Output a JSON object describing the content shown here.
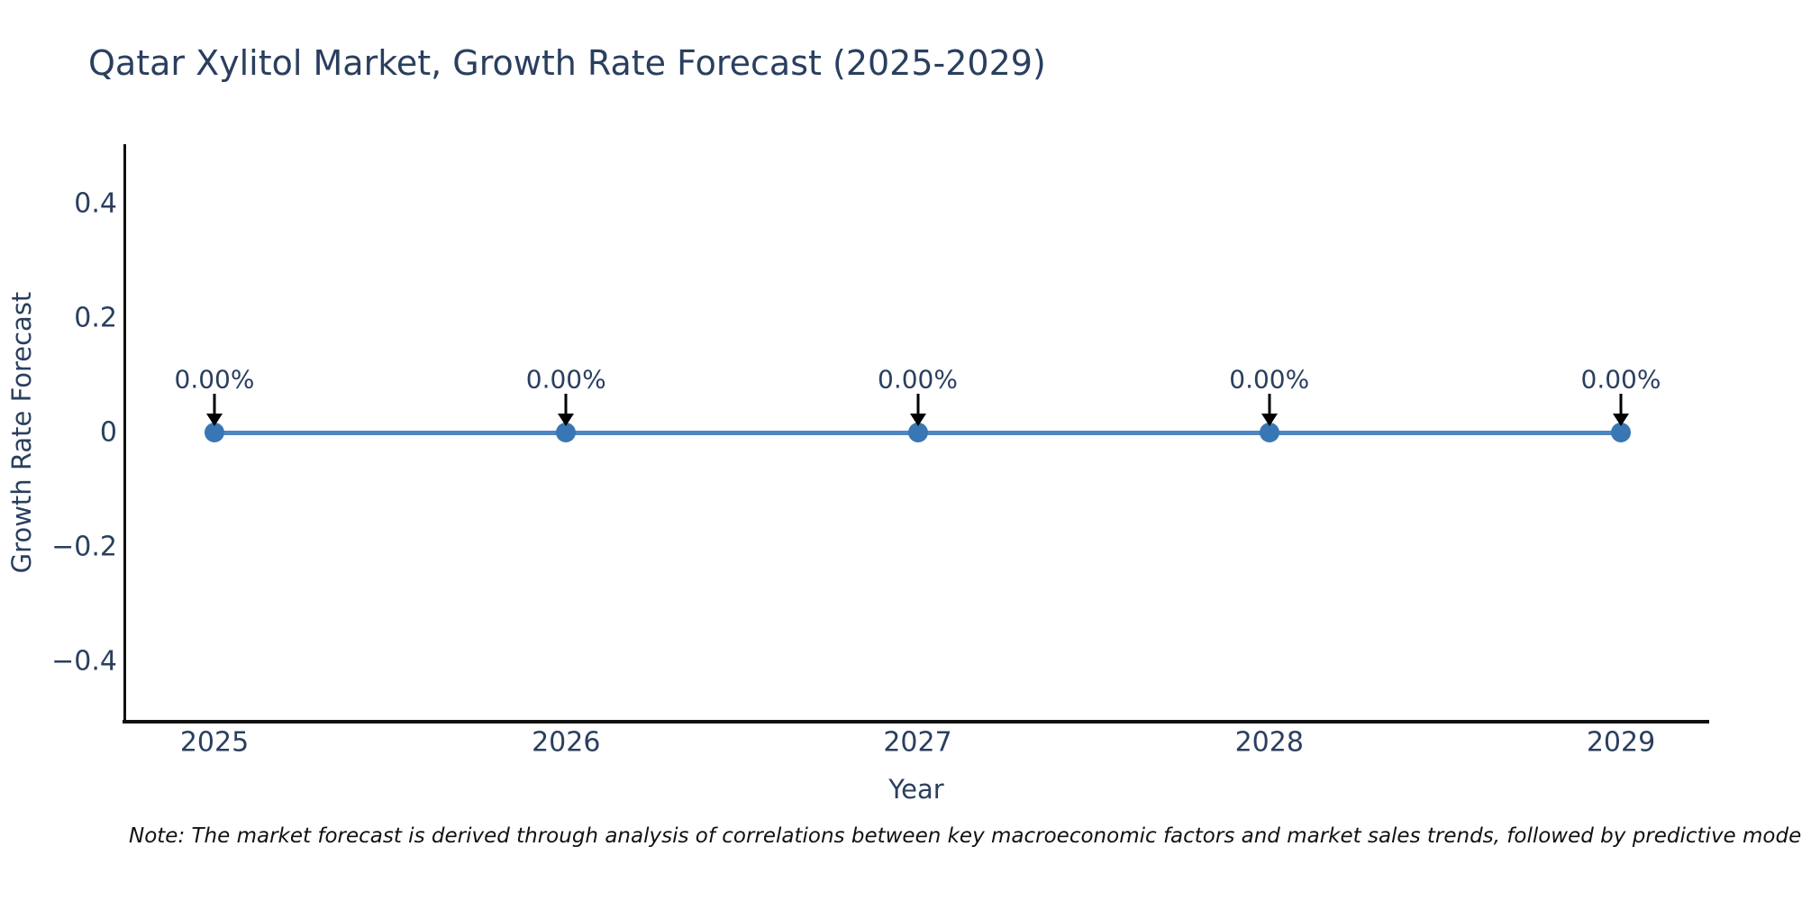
{
  "title": "Qatar Xylitol Market, Growth Rate Forecast (2025-2029)",
  "note": "Note: The market forecast is derived through analysis of correlations between key macroeconomic factors and market sales trends, followed by predictive modeling to project future sales.",
  "chart_data": {
    "type": "line",
    "title": "Qatar Xylitol Market, Growth Rate Forecast (2025-2029)",
    "xlabel": "Year",
    "ylabel": "Growth Rate Forecast",
    "x": [
      2025,
      2026,
      2027,
      2028,
      2029
    ],
    "series": [
      {
        "name": "Growth Rate Forecast",
        "values": [
          0,
          0,
          0,
          0,
          0
        ]
      }
    ],
    "annotations": [
      "0.00%",
      "0.00%",
      "0.00%",
      "0.00%",
      "0.00%"
    ],
    "xtick_labels": [
      "2025",
      "2026",
      "2027",
      "2028",
      "2029"
    ],
    "yticks": [
      0.4,
      0.2,
      0,
      -0.2,
      -0.4
    ],
    "ytick_labels": [
      "0.4",
      "0.2",
      "0",
      "−0.2",
      "−0.4"
    ],
    "ylim": [
      -0.5,
      0.5
    ],
    "grid": false,
    "legend": "none",
    "colors": {
      "line": "#4d86c2",
      "marker": "#3976b4",
      "axis": "#111111",
      "text": "#2a3f5f",
      "arrow": "#000000",
      "note": "#111111",
      "background": "#ffffff"
    }
  }
}
